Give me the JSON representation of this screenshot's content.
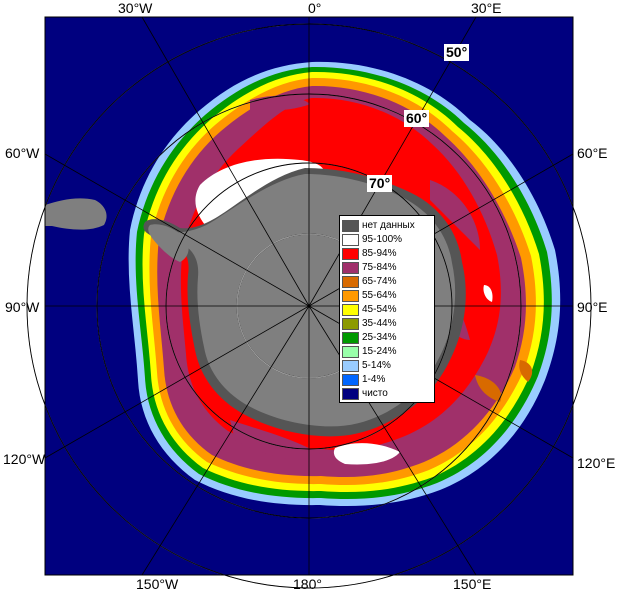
{
  "map": {
    "colors": {
      "ocean": "#00007f",
      "land": "#7f7f7f",
      "no_data": "#555555",
      "grid": "#b4b4b4"
    },
    "top_labels": [
      "30°W",
      "0°",
      "30°E"
    ],
    "bottom_labels": [
      "150°W",
      "180°",
      "150°E"
    ],
    "left_labels": [
      "60°W",
      "90°W",
      "120°W"
    ],
    "right_labels": [
      "60°E",
      "90°E",
      "120°E"
    ],
    "lat_labels": [
      "50°",
      "60°",
      "70°"
    ]
  },
  "legend": {
    "items": [
      {
        "label": "нет данных",
        "color": "#555555"
      },
      {
        "label": "95-100%",
        "color": "#ffffff"
      },
      {
        "label": "85-94%",
        "color": "#ff0000"
      },
      {
        "label": "75-84%",
        "color": "#a0306a"
      },
      {
        "label": "65-74%",
        "color": "#d86a00"
      },
      {
        "label": "55-64%",
        "color": "#ff9900"
      },
      {
        "label": "45-54%",
        "color": "#ffff00"
      },
      {
        "label": "35-44%",
        "color": "#8c9a00"
      },
      {
        "label": "25-34%",
        "color": "#009900"
      },
      {
        "label": "15-24%",
        "color": "#99ffaa"
      },
      {
        "label": "5-14%",
        "color": "#99ccff"
      },
      {
        "label": "1-4%",
        "color": "#0066ff"
      },
      {
        "label": "чисто",
        "color": "#00007f"
      }
    ]
  }
}
